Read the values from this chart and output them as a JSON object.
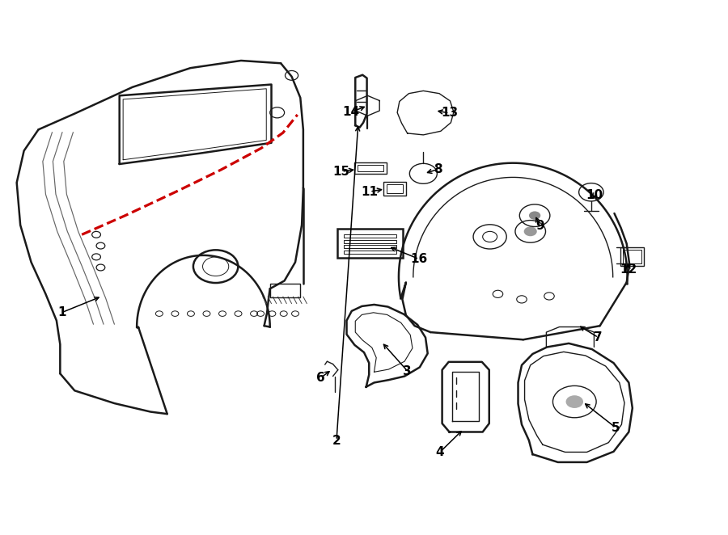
{
  "bg_color": "#ffffff",
  "line_color": "#1a1a1a",
  "red_color": "#cc0000",
  "label_color": "#000000",
  "lw_main": 1.8,
  "lw_detail": 1.0
}
